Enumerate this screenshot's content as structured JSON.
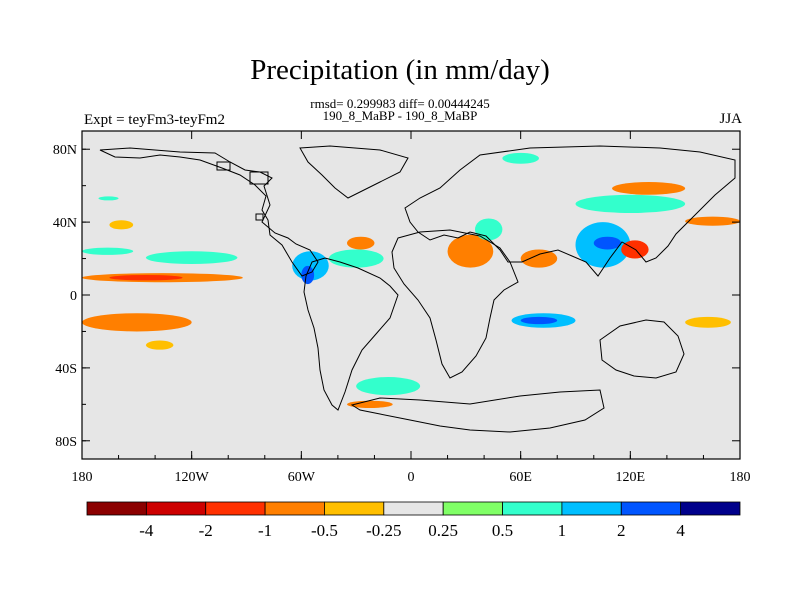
{
  "chart_data": {
    "type": "heatmap",
    "title": "Precipitation (in mm/day)",
    "subtitle_stats": "rmsd= 0.299983 diff= 0.00444245",
    "subtitle_periods": "190_8_MaBP - 190_8_MaBP",
    "left_label": "Expt = teyFm3-teyFm2",
    "right_label": "JJA",
    "xlim": [
      -180,
      180
    ],
    "ylim": [
      -90,
      90
    ],
    "x_ticks": [
      {
        "value": -180,
        "label": "180"
      },
      {
        "value": -120,
        "label": "120W"
      },
      {
        "value": -60,
        "label": "60W"
      },
      {
        "value": 0,
        "label": "0"
      },
      {
        "value": 60,
        "label": "60E"
      },
      {
        "value": 120,
        "label": "120E"
      },
      {
        "value": 180,
        "label": "180"
      }
    ],
    "y_ticks": [
      {
        "value": 80,
        "label": "80N"
      },
      {
        "value": 40,
        "label": "40N"
      },
      {
        "value": 0,
        "label": "0"
      },
      {
        "value": -40,
        "label": "40S"
      },
      {
        "value": -80,
        "label": "80S"
      }
    ],
    "colorbar": {
      "colors": [
        "#8b0000",
        "#cd0000",
        "#ff3000",
        "#ff7f00",
        "#ffbf00",
        "#e6e6e6",
        "#80ff66",
        "#33ffcc",
        "#00bfff",
        "#0055ff",
        "#00008b"
      ],
      "labels": [
        "-4",
        "-2",
        "-1",
        "-0.5",
        "-0.25",
        "0.25",
        "0.5",
        "1",
        "2",
        "4"
      ]
    },
    "anomaly_regions": [
      {
        "name": "north-pacific-west-positive",
        "lon": [
          -171,
          -160
        ],
        "lat": [
          52,
          54
        ],
        "class": "0.5"
      },
      {
        "name": "north-pacific-negative",
        "lon": [
          -165,
          -152
        ],
        "lat": [
          36,
          41
        ],
        "class": "-0.25"
      },
      {
        "name": "tropical-pacific-west-positive",
        "lon": [
          -180,
          -152
        ],
        "lat": [
          22,
          26
        ],
        "class": "0.5"
      },
      {
        "name": "tropical-pacific-positive",
        "lon": [
          -145,
          -95
        ],
        "lat": [
          17,
          24
        ],
        "class": "0.5"
      },
      {
        "name": "itcz-pacific-negative",
        "lon": [
          -180,
          -92
        ],
        "lat": [
          7,
          12
        ],
        "class": "-0.5"
      },
      {
        "name": "itcz-pacific-negative-core",
        "lon": [
          -165,
          -125
        ],
        "lat": [
          8,
          11
        ],
        "class": "-1"
      },
      {
        "name": "central-america-positive",
        "lon": [
          -65,
          -45
        ],
        "lat": [
          8,
          24
        ],
        "class": "1"
      },
      {
        "name": "central-america-core",
        "lon": [
          -60,
          -53
        ],
        "lat": [
          6,
          16
        ],
        "class": "2"
      },
      {
        "name": "north-atlantic-positive",
        "lon": [
          -45,
          -15
        ],
        "lat": [
          15,
          25
        ],
        "class": "0.5"
      },
      {
        "name": "atlantic-negative",
        "lon": [
          -35,
          -20
        ],
        "lat": [
          25,
          32
        ],
        "class": "-0.5"
      },
      {
        "name": "south-pacific-negative",
        "lon": [
          -180,
          -120
        ],
        "lat": [
          -20,
          -10
        ],
        "class": "-0.5"
      },
      {
        "name": "south-pacific-negative-2",
        "lon": [
          -145,
          -130
        ],
        "lat": [
          -30,
          -25
        ],
        "class": "-0.25"
      },
      {
        "name": "south-atlantic-positive",
        "lon": [
          -30,
          5
        ],
        "lat": [
          -55,
          -45
        ],
        "class": "0.5"
      },
      {
        "name": "south-atlantic-negative",
        "lon": [
          -35,
          -10
        ],
        "lat": [
          -62,
          -58
        ],
        "class": "-0.5"
      },
      {
        "name": "mid-east-negative",
        "lon": [
          20,
          45
        ],
        "lat": [
          15,
          33
        ],
        "class": "-0.5"
      },
      {
        "name": "mid-east-positive",
        "lon": [
          35,
          50
        ],
        "lat": [
          30,
          42
        ],
        "class": "0.5"
      },
      {
        "name": "arabian-sea-negative",
        "lon": [
          60,
          80
        ],
        "lat": [
          15,
          25
        ],
        "class": "-0.5"
      },
      {
        "name": "south-indian-positive",
        "lon": [
          55,
          90
        ],
        "lat": [
          -18,
          -10
        ],
        "class": "1"
      },
      {
        "name": "south-indian-core",
        "lon": [
          60,
          80
        ],
        "lat": [
          -16,
          -12
        ],
        "class": "2"
      },
      {
        "name": "east-asia-positive",
        "lon": [
          90,
          120
        ],
        "lat": [
          15,
          40
        ],
        "class": "1"
      },
      {
        "name": "east-asia-core",
        "lon": [
          100,
          115
        ],
        "lat": [
          25,
          32
        ],
        "class": "2"
      },
      {
        "name": "east-asia-negative",
        "lon": [
          115,
          130
        ],
        "lat": [
          20,
          30
        ],
        "class": "-1"
      },
      {
        "name": "north-asia-positive",
        "lon": [
          90,
          150
        ],
        "lat": [
          45,
          55
        ],
        "class": "0.5"
      },
      {
        "name": "north-asia-negative",
        "lon": [
          110,
          150
        ],
        "lat": [
          55,
          62
        ],
        "class": "-0.5"
      },
      {
        "name": "siberia-positive",
        "lon": [
          50,
          70
        ],
        "lat": [
          72,
          78
        ],
        "class": "0.5"
      },
      {
        "name": "west-pacific-negative",
        "lon": [
          150,
          180
        ],
        "lat": [
          38,
          43
        ],
        "class": "-0.5"
      },
      {
        "name": "south-pacific-east-negative",
        "lon": [
          150,
          175
        ],
        "lat": [
          -18,
          -12
        ],
        "class": "-0.25"
      }
    ]
  }
}
